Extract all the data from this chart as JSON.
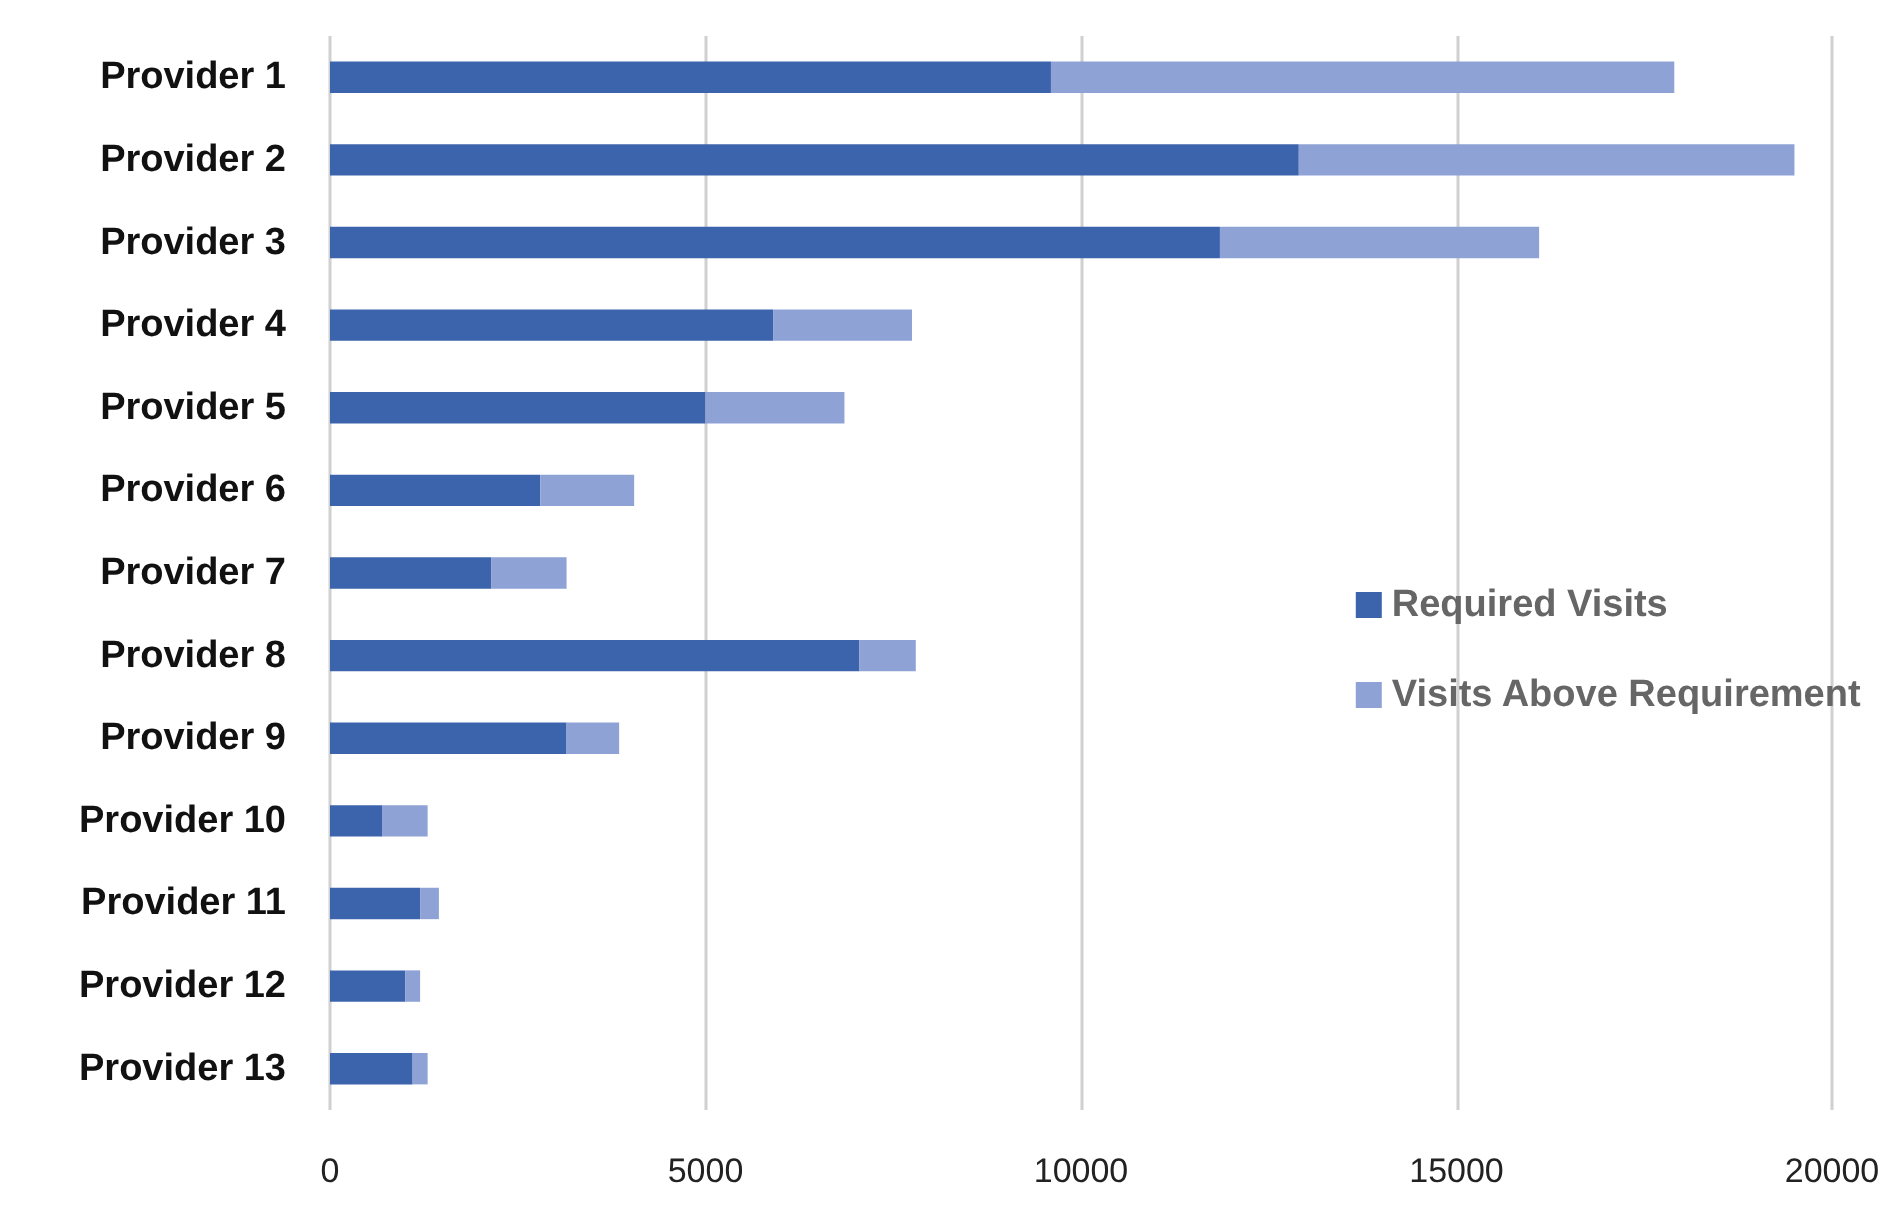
{
  "chart_data": {
    "type": "bar",
    "orientation": "horizontal",
    "stacked": true,
    "categories": [
      "Provider 1",
      "Provider 2",
      "Provider 3",
      "Provider 4",
      "Provider 5",
      "Provider 6",
      "Provider 7",
      "Provider 8",
      "Provider 9",
      "Provider 10",
      "Provider 11",
      "Provider 12",
      "Provider 13"
    ],
    "series": [
      {
        "name": "Required Visits",
        "color": "#3c64ad",
        "values": [
          9600,
          12900,
          11850,
          5900,
          5000,
          2800,
          2150,
          7050,
          3150,
          700,
          1200,
          1000,
          1100
        ]
      },
      {
        "name": "Visits Above Requirement",
        "color": "#8ea2d5",
        "values": [
          8300,
          6600,
          4250,
          1850,
          1850,
          1250,
          1000,
          750,
          700,
          600,
          250,
          200,
          200
        ]
      }
    ],
    "xlim": [
      0,
      20000
    ],
    "xticks": [
      0,
      5000,
      10000,
      15000,
      20000
    ],
    "grid": "x",
    "legend": "right"
  }
}
